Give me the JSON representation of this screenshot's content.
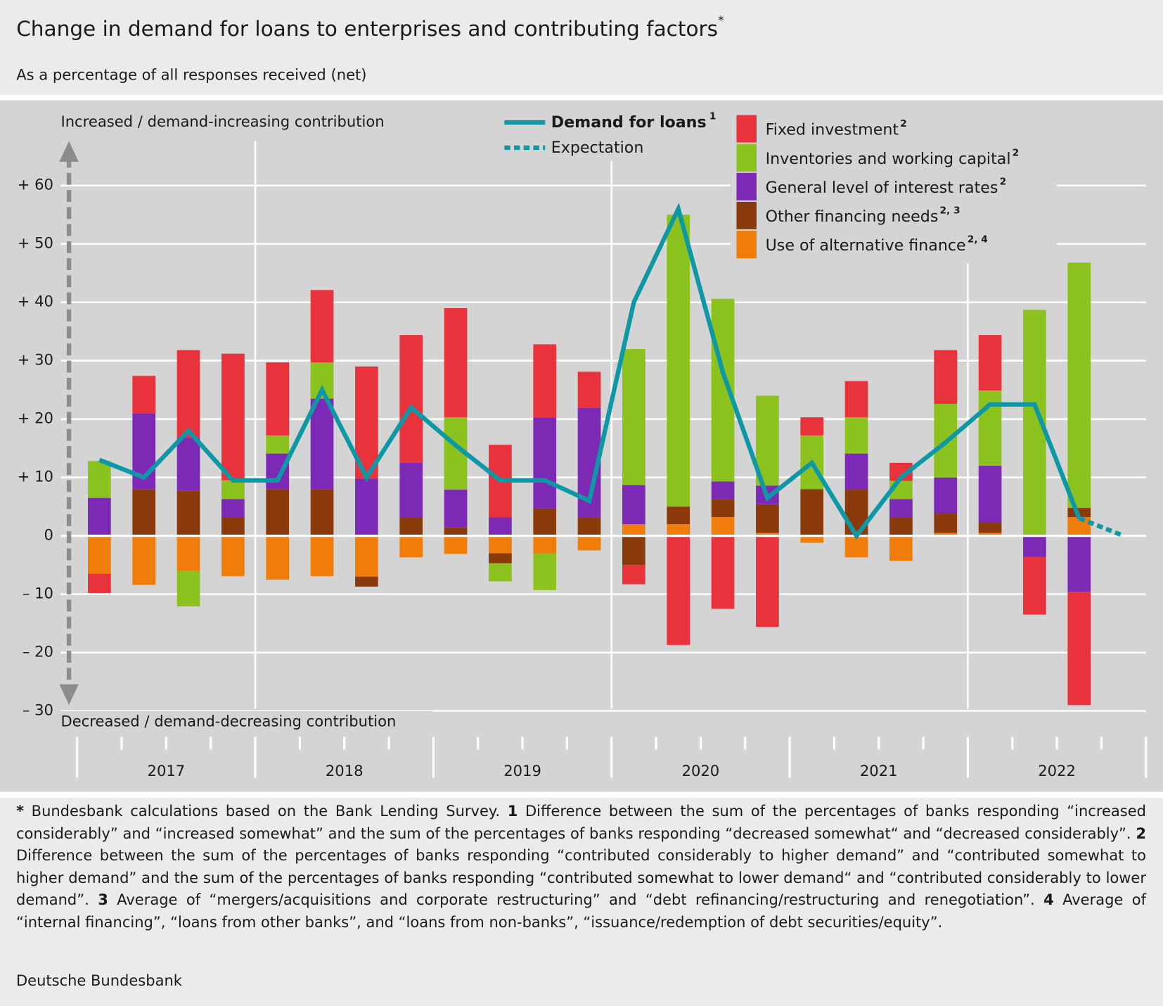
{
  "chart_data": {
    "type": "bar",
    "stacked": true,
    "title": "Change in demand for loans to enterprises and contributing factors",
    "title_note": "*",
    "subtitle": "As a percentage of all responses received (net)",
    "annotations": {
      "top": "Increased / demand-increasing contribution",
      "bottom": "Decreased / demand-decreasing contribution"
    },
    "categories": [
      null,
      null,
      null,
      null,
      null,
      null,
      null,
      null,
      null,
      null,
      null,
      null,
      null,
      null,
      null,
      null,
      null,
      null,
      null,
      null,
      null,
      null,
      null,
      null
    ],
    "years": [
      "2017",
      "2018",
      "2019",
      "2020",
      "2021",
      "2022"
    ],
    "ylim": [
      -30,
      60
    ],
    "yticks": [
      {
        "value": 60,
        "label": "+ 60"
      },
      {
        "value": 50,
        "label": "+ 50"
      },
      {
        "value": 40,
        "label": "+ 40"
      },
      {
        "value": 30,
        "label": "+ 30"
      },
      {
        "value": 20,
        "label": "+ 20"
      },
      {
        "value": 10,
        "label": "+ 10"
      },
      0,
      {
        "value": -10,
        "label": "– 10"
      },
      {
        "value": -20,
        "label": "– 20"
      },
      {
        "value": -30,
        "label": "– 30"
      }
    ],
    "grid": true,
    "series": [
      {
        "name": "Fixed investment",
        "note": "2",
        "color": "#e8333c",
        "values": [
          -3.3,
          6.4,
          15,
          21.7,
          12.5,
          12.4,
          19.2,
          21.9,
          18.7,
          12.4,
          12.6,
          6.2,
          -3.3,
          -18.7,
          -12.5,
          -15.6,
          3.1,
          6.2,
          3.1,
          9.2,
          9.5,
          -9.9,
          -19.4,
          null
        ]
      },
      {
        "name": "Inventories and working capital",
        "note": "2",
        "color": "#8cc21e",
        "values": [
          6.3,
          0,
          -6.1,
          3.2,
          3.1,
          6.2,
          0,
          0,
          12.4,
          -3.1,
          -6.3,
          0,
          23.3,
          50,
          31.3,
          15.4,
          9.2,
          6.2,
          3.1,
          12.6,
          12.9,
          38.7,
          42,
          null
        ]
      },
      {
        "name": "General level of interest rates",
        "note": "2",
        "color": "#7c2ab6",
        "values": [
          6.5,
          13,
          9.1,
          3.1,
          6.1,
          15.5,
          9.8,
          9.3,
          6.4,
          3.2,
          15.5,
          18.7,
          6.7,
          0,
          3,
          3.2,
          0,
          6.2,
          3.1,
          6.2,
          9.7,
          -3.6,
          -9.6,
          null
        ]
      },
      {
        "name": "Other financing needs",
        "note": "2, 3",
        "color": "#8a3a0b",
        "values": [
          0,
          8,
          7.7,
          3.2,
          8,
          8,
          -1.7,
          3.2,
          1.5,
          -1.7,
          4.7,
          3.2,
          -5,
          3,
          3.1,
          4.9,
          8,
          7.9,
          3.2,
          3.3,
          1.8,
          0,
          1.6,
          null
        ]
      },
      {
        "name": "Use of alternative finance",
        "note": "2, 4",
        "color": "#f07c0a",
        "values": [
          -6.5,
          -8.4,
          -6,
          -6.9,
          -7.5,
          -6.9,
          -7,
          -3.7,
          -3.1,
          -3,
          -3,
          -2.5,
          2,
          2,
          3.2,
          0.5,
          -1.2,
          -3.7,
          -4.3,
          0.5,
          0.5,
          0,
          3.2,
          null
        ]
      }
    ],
    "lines": [
      {
        "name": "Demand for loans",
        "note": "1",
        "color": "#0e98a6",
        "style": "solid",
        "values": [
          13,
          10,
          18,
          9.5,
          9.5,
          25,
          10,
          22,
          15.5,
          9.5,
          9.5,
          6,
          40,
          56,
          28,
          6.5,
          12.5,
          0,
          10,
          16,
          22.5,
          22.5,
          3,
          null
        ]
      },
      {
        "name": "Expectation",
        "color": "#0e98a6",
        "style": "dashed",
        "values": [
          null,
          null,
          null,
          null,
          null,
          null,
          null,
          null,
          null,
          null,
          null,
          null,
          null,
          null,
          null,
          null,
          null,
          null,
          null,
          null,
          null,
          null,
          3,
          0
        ]
      }
    ],
    "notes": [
      {
        "marker": "*",
        "text": "Bundesbank calculations based on the Bank Lending Survey."
      },
      {
        "marker": "1",
        "text": "Difference between the sum of the percentages of banks responding “increased considerably” and “increased somewhat” and the sum of the percentages of banks responding “decreased somewhat“ and “decreased considerably”."
      },
      {
        "marker": "2",
        "text": "Difference between the sum of the percentages of banks responding “contributed considerably to higher demand” and “contributed somewhat to higher demand” and the sum of the percentages of banks responding “contributed somewhat to lower demand“ and “contributed considerably to lower demand”."
      },
      {
        "marker": "3",
        "text": "Average of “mergers/acquisitions and corporate restructuring” and “debt refinancing/restructuring and renegotiation”."
      },
      {
        "marker": "4",
        "text": "Average of “internal financing”, “loans from other banks”, and “loans from non-banks”, “issuance/redemption of debt securities/equity”."
      }
    ],
    "source": "Deutsche Bundesbank"
  }
}
